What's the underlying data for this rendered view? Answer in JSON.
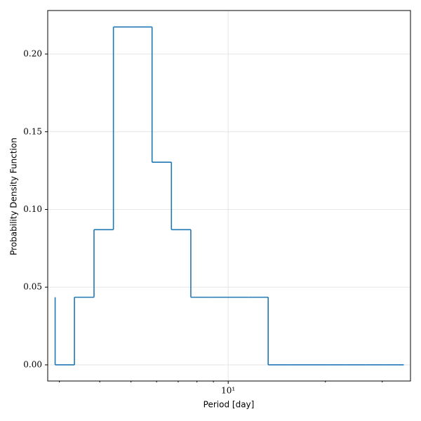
{
  "chart_data": {
    "type": "step",
    "step_where": "pre",
    "x_label": "Period [day]",
    "y_label": "Probability Density Function",
    "x": [
      2.91,
      3.34,
      3.84,
      4.41,
      5.06,
      5.81,
      6.67,
      7.66,
      8.79,
      10.09,
      11.59,
      13.3,
      15.28,
      17.54,
      20.14,
      23.12,
      26.55,
      30.48,
      34.99
    ],
    "values": [
      0.0435,
      0,
      0.0435,
      0.087,
      0.2174,
      0.2174,
      0.1304,
      0.087,
      0.0435,
      0.0435,
      0.0435,
      0.0435,
      0,
      0,
      0,
      0,
      0,
      0,
      0
    ],
    "color": "#1f77b4",
    "xscale": "log",
    "xlim": [
      2.76,
      36.7
    ],
    "xticks": [
      {
        "value": 10,
        "label": "10¹"
      }
    ],
    "xminorticks": [
      3,
      4,
      5,
      6,
      7,
      8,
      9,
      20,
      30
    ],
    "ylim": [
      -0.0104,
      0.228
    ],
    "yticks": [
      {
        "value": 0,
        "label": "0.00"
      },
      {
        "value": 0.05,
        "label": "0.05"
      },
      {
        "value": 0.1,
        "label": "0.10"
      },
      {
        "value": 0.15,
        "label": "0.15"
      },
      {
        "value": 0.2,
        "label": "0.20"
      }
    ],
    "grid": true
  }
}
